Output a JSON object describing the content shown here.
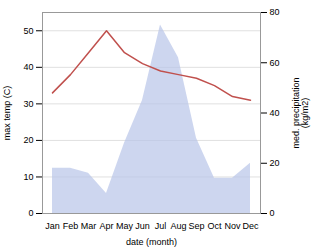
{
  "chart_data": {
    "type": "line",
    "categories": [
      "Jan",
      "Feb",
      "Mar",
      "Apr",
      "May",
      "Jun",
      "Jul",
      "Aug",
      "Sep",
      "Oct",
      "Nov",
      "Dec"
    ],
    "series": [
      {
        "type": "area",
        "axis": "y2",
        "color": "#b8c4e8",
        "values": [
          18,
          18,
          16,
          8,
          28,
          45,
          75,
          62,
          30,
          14,
          14,
          20
        ]
      },
      {
        "type": "line",
        "color": "#c0504d",
        "values": [
          33,
          38,
          44,
          50,
          44,
          41,
          39,
          38,
          37,
          35,
          32,
          31
        ]
      }
    ],
    "xlabel": "date (month)",
    "ylabel": "max temp (C)",
    "y2label": "med. precipitation\n(kg/m2)",
    "ylim": [
      0,
      55
    ],
    "yticks": [
      0,
      10,
      20,
      30,
      40,
      50
    ],
    "y2lim": [
      0,
      80
    ],
    "y2ticks": [
      0,
      20,
      40,
      60,
      80
    ],
    "grid": true
  }
}
